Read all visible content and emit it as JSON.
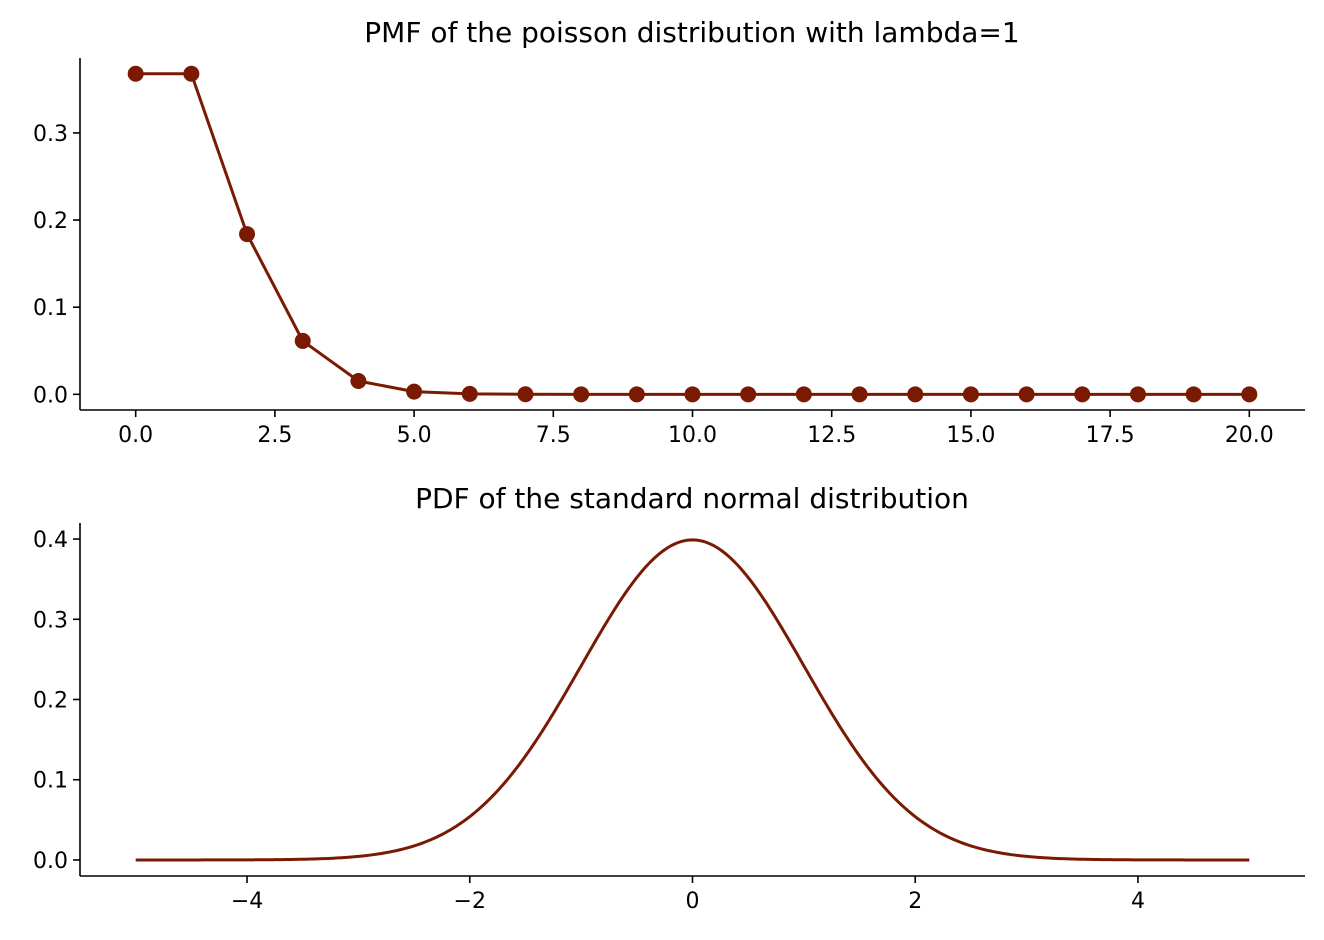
{
  "colors": {
    "series": "#7b1a02"
  },
  "chart_data": [
    {
      "type": "line",
      "title": "PMF of the poisson distribution with lambda=1",
      "xlabel": "",
      "ylabel": "",
      "xlim": [
        -1.0,
        21.0
      ],
      "ylim": [
        -0.018,
        0.386
      ],
      "markers": true,
      "x": [
        0,
        1,
        2,
        3,
        4,
        5,
        6,
        7,
        8,
        9,
        10,
        11,
        12,
        13,
        14,
        15,
        16,
        17,
        18,
        19,
        20
      ],
      "y": [
        0.3679,
        0.3679,
        0.1839,
        0.0613,
        0.0153,
        0.0031,
        0.0005,
        0.0001,
        0.0,
        0.0,
        0.0,
        0.0,
        0.0,
        0.0,
        0.0,
        0.0,
        0.0,
        0.0,
        0.0,
        0.0,
        0.0
      ],
      "xticks": [
        0.0,
        2.5,
        5.0,
        7.5,
        10.0,
        12.5,
        15.0,
        17.5,
        20.0
      ],
      "xtick_labels": [
        "0.0",
        "2.5",
        "5.0",
        "7.5",
        "10.0",
        "12.5",
        "15.0",
        "17.5",
        "20.0"
      ],
      "yticks": [
        0.0,
        0.1,
        0.2,
        0.3
      ],
      "ytick_labels": [
        "0.0",
        "0.1",
        "0.2",
        "0.3"
      ],
      "grid": false,
      "spines": "left-bottom"
    },
    {
      "type": "line",
      "title": "PDF of the standard normal distribution",
      "xlabel": "",
      "ylabel": "",
      "xlim": [
        -5.5,
        5.5
      ],
      "ylim": [
        -0.02,
        0.42
      ],
      "markers": false,
      "x_range": [
        -5,
        5
      ],
      "function": "standard normal pdf",
      "xticks": [
        -4,
        -2,
        0,
        2,
        4
      ],
      "xtick_labels": [
        "−4",
        "−2",
        "0",
        "2",
        "4"
      ],
      "yticks": [
        0.0,
        0.1,
        0.2,
        0.3,
        0.4
      ],
      "ytick_labels": [
        "0.0",
        "0.1",
        "0.2",
        "0.3",
        "0.4"
      ],
      "grid": false,
      "spines": "left-bottom"
    }
  ]
}
